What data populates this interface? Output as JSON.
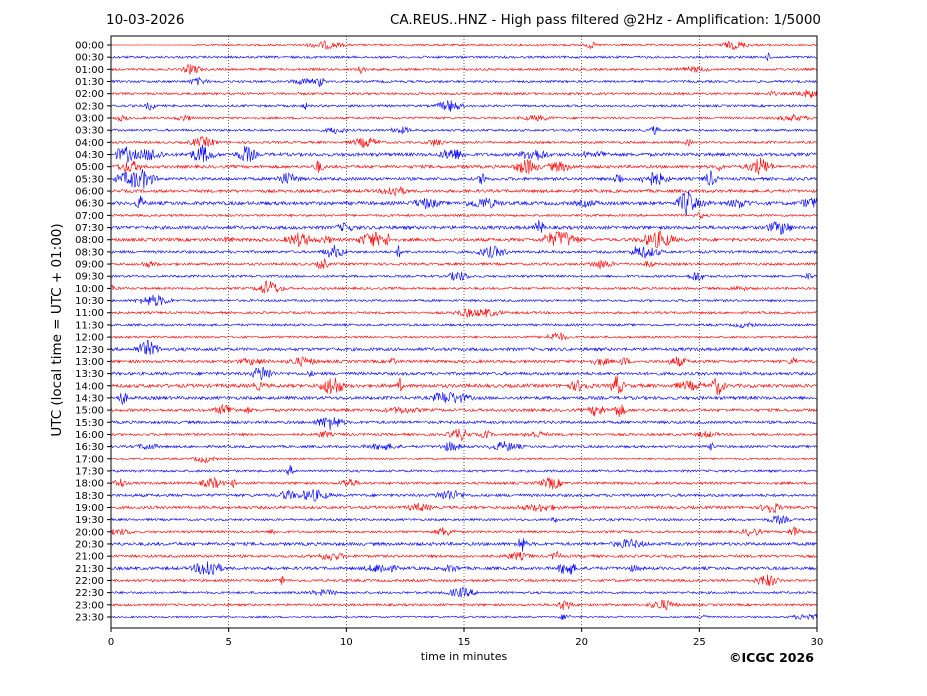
{
  "header": {
    "date": "10-03-2026",
    "title": "CA.REUS..HNZ - High pass filtered @2Hz - Amplification: 1/5000"
  },
  "footer": {
    "copyright": "©ICGC 2026"
  },
  "chart_data": {
    "type": "line",
    "subtype": "helicorder",
    "title": "CA.REUS..HNZ - High pass filtered @2Hz - Amplification: 1/5000",
    "xlabel": "time in minutes",
    "ylabel": "UTC (local time = UTC + 01:00)",
    "xlim": [
      0,
      30
    ],
    "xticks": [
      "0",
      "5",
      "10",
      "15",
      "20",
      "25",
      "30"
    ],
    "grid": "vertical dotted at 5-minute intervals",
    "series_colors": [
      "#ff0000",
      "#0000ff"
    ],
    "rows": [
      "00:00",
      "00:30",
      "01:00",
      "01:30",
      "02:00",
      "02:30",
      "03:00",
      "03:30",
      "04:00",
      "04:30",
      "05:00",
      "05:30",
      "06:00",
      "06:30",
      "07:00",
      "07:30",
      "08:00",
      "08:30",
      "09:00",
      "09:30",
      "10:00",
      "10:30",
      "11:00",
      "11:30",
      "12:00",
      "12:30",
      "13:00",
      "13:30",
      "14:00",
      "14:30",
      "15:00",
      "15:30",
      "16:00",
      "16:30",
      "17:00",
      "17:30",
      "18:00",
      "18:30",
      "19:00",
      "19:30",
      "20:00",
      "20:30",
      "21:00",
      "21:30",
      "22:00",
      "22:30",
      "23:00",
      "23:30"
    ],
    "row_activity": [
      0.4,
      0.6,
      0.6,
      0.6,
      0.6,
      0.6,
      0.5,
      0.6,
      0.6,
      1.2,
      1.0,
      1.0,
      1.0,
      1.3,
      0.6,
      1.2,
      1.1,
      0.8,
      0.7,
      0.6,
      0.6,
      0.6,
      0.6,
      0.6,
      0.5,
      1.1,
      0.9,
      1.0,
      1.3,
      1.1,
      0.9,
      0.9,
      0.7,
      0.7,
      0.3,
      0.6,
      0.7,
      0.9,
      0.9,
      0.6,
      0.6,
      1.1,
      0.8,
      1.0,
      0.7,
      0.6,
      0.6,
      0.3
    ]
  }
}
